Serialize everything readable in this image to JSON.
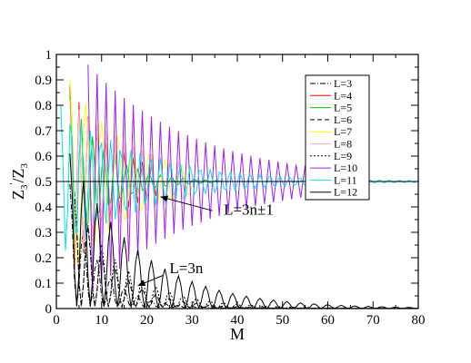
{
  "chart_data": {
    "type": "line",
    "xlabel": "M",
    "ylabel": "Z3'/Z3",
    "ylabel_main": "Z",
    "ylabel_sub": "3",
    "ylabel_sup": "'",
    "ylabel_slash": "/Z",
    "ylabel_sub2": "3",
    "xlim": [
      0,
      80
    ],
    "ylim": [
      0,
      1
    ],
    "xticks": [
      0,
      10,
      20,
      30,
      40,
      50,
      60,
      70,
      80
    ],
    "yticks": [
      0,
      0.1,
      0.2,
      0.3,
      0.4,
      0.5,
      0.6,
      0.7,
      0.8,
      0.9,
      1
    ],
    "xtick_labels": [
      "0",
      "10",
      "20",
      "30",
      "40",
      "50",
      "60",
      "70",
      "80"
    ],
    "ytick_labels": [
      "0",
      "0.1",
      "0.2",
      "0.3",
      "0.4",
      "0.5",
      "0.6",
      "0.7",
      "0.8",
      "0.9",
      "1"
    ],
    "grid": false,
    "legend_position": "top-right",
    "reference_line_y": 0.5,
    "annotations": [
      {
        "text": "L=3n±1",
        "text_at": [
          37,
          0.37
        ],
        "arrow_from": [
          34.5,
          0.385
        ],
        "arrow_to": [
          23,
          0.44
        ]
      },
      {
        "text": "L=3n",
        "text_at": [
          25,
          0.14
        ],
        "arrow_from": [
          23.5,
          0.13
        ],
        "arrow_to": [
          18,
          0.09
        ]
      }
    ],
    "series": [
      {
        "name": "L=3",
        "color": "#000000",
        "dash": "6,2,1,2",
        "group": "3n",
        "start": 3,
        "amp": 0.48,
        "decay": 0.16,
        "period": 3
      },
      {
        "name": "L=4",
        "color": "#ff0000",
        "dash": "",
        "group": "osc",
        "start": 3,
        "amp": 0.38,
        "decay": 0.1,
        "period": 2,
        "end": 22
      },
      {
        "name": "L=5",
        "color": "#00cc00",
        "dash": "",
        "group": "osc",
        "start": 3,
        "amp": 0.34,
        "decay": 0.13,
        "period": 2.5,
        "end": 36
      },
      {
        "name": "L=6",
        "color": "#000000",
        "dash": "5,3",
        "group": "3n",
        "start": 4,
        "amp": 0.45,
        "decay": 0.12,
        "period": 3
      },
      {
        "name": "L=7",
        "color": "#ffff00",
        "dash": "",
        "group": "osc",
        "start": 3,
        "amp": 0.4,
        "decay": 0.075,
        "period": 3.5,
        "end": 30
      },
      {
        "name": "L=8",
        "color": "#ffb6c1",
        "dash": "",
        "group": "osc",
        "start": 3,
        "amp": 0.32,
        "decay": 0.06,
        "period": 2,
        "end": 28
      },
      {
        "name": "L=9",
        "color": "#000000",
        "dash": "2,2",
        "group": "3n",
        "start": 4,
        "amp": 0.42,
        "decay": 0.09,
        "period": 3
      },
      {
        "name": "L=10",
        "color": "#a020f0",
        "dash": "",
        "group": "osc",
        "start": 7,
        "amp": 0.46,
        "decay": 0.042,
        "period": 2,
        "end": 62
      },
      {
        "name": "L=11",
        "color": "#00e5ee",
        "dash": "",
        "group": "osc",
        "start": 1,
        "amp": 0.3,
        "decay": 0.055,
        "period": 2.2,
        "end": 80
      },
      {
        "name": "L=12",
        "color": "#000000",
        "dash": "",
        "group": "3n",
        "start": 3,
        "amp": 0.6,
        "decay": 0.065,
        "period": 3
      }
    ]
  }
}
